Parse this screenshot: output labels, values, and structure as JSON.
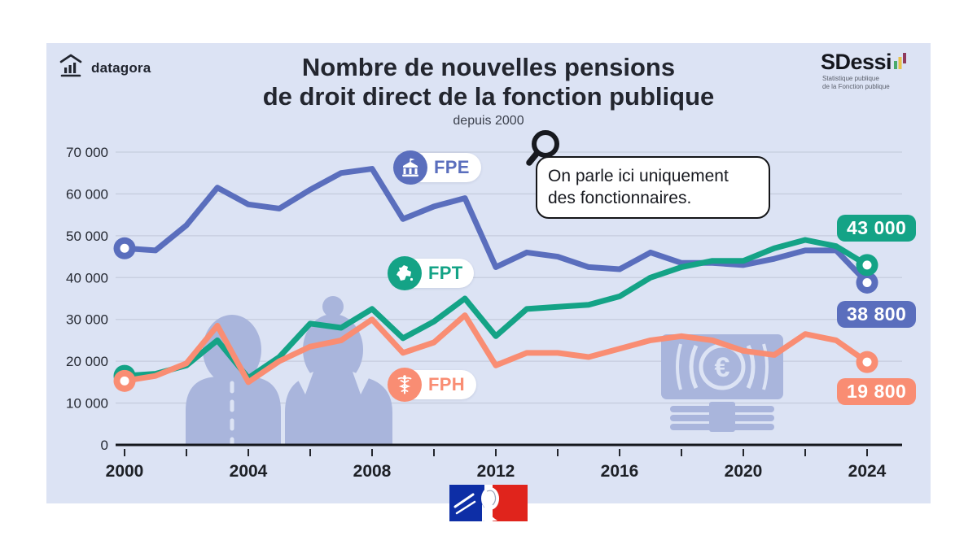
{
  "page": {
    "brand": "datagora",
    "title_line1": "Nombre de nouvelles pensions",
    "title_line2": "de droit direct de la fonction publique",
    "subtitle": "depuis 2000"
  },
  "publisher": {
    "name": "SDessi",
    "caption_line1": "Statistique publique",
    "caption_line2": "de la Fonction publique"
  },
  "callout": {
    "line1": "On parle ici uniquement",
    "line2": "des fonctionnaires."
  },
  "colors": {
    "card_background": "#dce3f4",
    "fpe_blue": "#5a6ebd",
    "fpt_green": "#14a386",
    "fph_salmon": "#f98d73",
    "decoration_periwinkle": "#a9b5dc",
    "axis_black": "#15171d",
    "gridline": "#c6cdde"
  },
  "chart_data": {
    "type": "line",
    "x": [
      2000,
      2001,
      2002,
      2003,
      2004,
      2005,
      2006,
      2007,
      2008,
      2009,
      2010,
      2011,
      2012,
      2013,
      2014,
      2015,
      2016,
      2017,
      2018,
      2019,
      2020,
      2021,
      2022,
      2023,
      2024
    ],
    "series": [
      {
        "name": "FPE",
        "color": "#5a6ebd",
        "icon": "government-building",
        "end_label": "38 800",
        "values": [
          47000,
          46500,
          52500,
          61500,
          57500,
          56500,
          61000,
          65000,
          66000,
          54000,
          57000,
          59000,
          42500,
          46000,
          45000,
          42500,
          42000,
          46000,
          43500,
          43500,
          43000,
          44500,
          46500,
          46500,
          38800
        ]
      },
      {
        "name": "FPT",
        "color": "#14a386",
        "icon": "france-map",
        "end_label": "43 000",
        "values": [
          16500,
          17000,
          19000,
          25000,
          16000,
          21000,
          29000,
          28000,
          32500,
          25500,
          29500,
          35000,
          26000,
          32500,
          33000,
          33500,
          35500,
          40000,
          42500,
          44000,
          44000,
          47000,
          49000,
          47500,
          43000
        ]
      },
      {
        "name": "FPH",
        "color": "#f98d73",
        "icon": "caduceus",
        "end_label": "19 800",
        "values": [
          15300,
          16500,
          19500,
          28500,
          15000,
          20000,
          23500,
          25000,
          30000,
          22000,
          24500,
          31000,
          19000,
          22000,
          22000,
          21000,
          23000,
          25000,
          26000,
          25000,
          22500,
          21500,
          26500,
          25000,
          19800
        ]
      }
    ],
    "ylim": [
      0,
      70000
    ],
    "ytick_step": 10000,
    "ytick_labels": [
      "0",
      "10 000",
      "20 000",
      "30 000",
      "40 000",
      "50 000",
      "60 000",
      "70 000"
    ],
    "xtick_labels": [
      "2000",
      "2004",
      "2008",
      "2012",
      "2016",
      "2020",
      "2024"
    ],
    "xtick_minor_every": 2,
    "grid": "horizontal",
    "legend_position": "inline-badges",
    "start_markers": true,
    "end_markers": true
  }
}
